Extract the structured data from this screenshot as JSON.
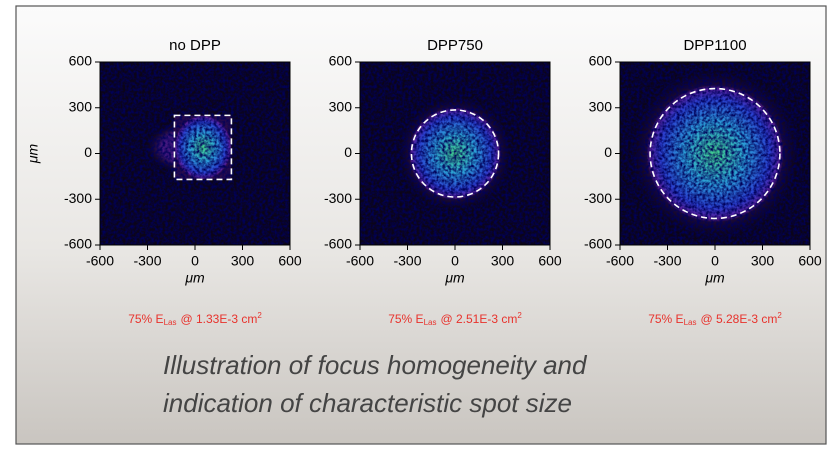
{
  "chart_data": [
    {
      "type": "image",
      "title": "no DPP",
      "xlabel": "μm",
      "ylabel": "μm",
      "xlim": [
        -600,
        600
      ],
      "ylim": [
        -600,
        600
      ],
      "xticks": [
        -600,
        -300,
        0,
        300,
        600
      ],
      "yticks": [
        -600,
        -300,
        0,
        300,
        600
      ],
      "spot": {
        "shape": "rect",
        "x": [
          -130,
          230
        ],
        "y": [
          -170,
          250
        ]
      },
      "annotation": {
        "text": "75% E",
        "subscript": "Las",
        "value": "@ 1.33E-3 cm",
        "superscript": "2"
      }
    },
    {
      "type": "image",
      "title": "DPP750",
      "xlabel": "μm",
      "xlim": [
        -600,
        600
      ],
      "ylim": [
        -600,
        600
      ],
      "xticks": [
        -600,
        -300,
        0,
        300,
        600
      ],
      "yticks": [
        -600,
        -300,
        0,
        300,
        600
      ],
      "spot": {
        "shape": "circle",
        "cx": 0,
        "cy": 0,
        "r": 275
      },
      "annotation": {
        "text": "75% E",
        "subscript": "Las",
        "value": "@ 2.51E-3 cm",
        "superscript": "2"
      }
    },
    {
      "type": "image",
      "title": "DPP1100",
      "xlabel": "μm",
      "xlim": [
        -600,
        600
      ],
      "ylim": [
        -600,
        600
      ],
      "xticks": [
        -600,
        -300,
        0,
        300,
        600
      ],
      "yticks": [
        -600,
        -300,
        0,
        300,
        600
      ],
      "spot": {
        "shape": "circle",
        "cx": 0,
        "cy": 0,
        "r": 410
      },
      "annotation": {
        "text": "75% E",
        "subscript": "Las",
        "value": "@ 5.28E-3 cm",
        "superscript": "2"
      }
    }
  ],
  "caption": [
    "Illustration of focus homogeneity and",
    "indication of characteristic spot size"
  ]
}
